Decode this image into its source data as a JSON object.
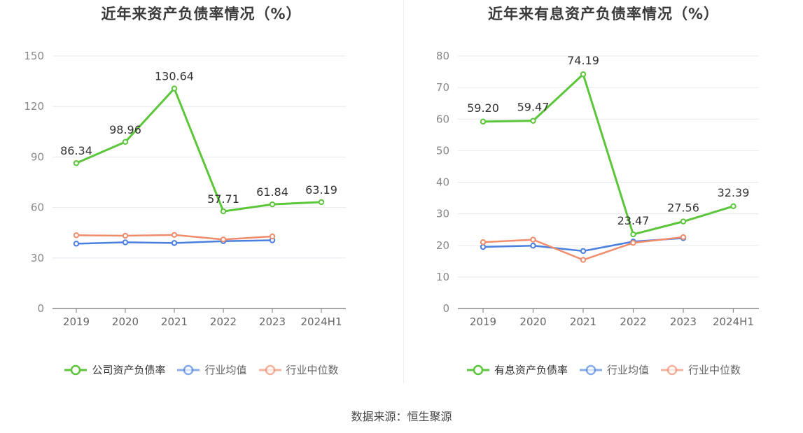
{
  "source_text": "数据来源：恒生聚源",
  "chart_data": [
    {
      "type": "line",
      "title": "近年来资产负债率情况（%）",
      "categories": [
        "2019",
        "2020",
        "2021",
        "2022",
        "2023",
        "2024H1"
      ],
      "ylim": [
        0,
        150
      ],
      "yticks": [
        0,
        30,
        60,
        90,
        120,
        150
      ],
      "grid": true,
      "legend_position": "bottom",
      "series": [
        {
          "name": "公司资产负债率",
          "color": "#5cc63a",
          "values": [
            86.34,
            98.96,
            130.64,
            57.71,
            61.84,
            63.19
          ],
          "labels": [
            "86.34",
            "98.96",
            "130.64",
            "57.71",
            "61.84",
            "63.19"
          ]
        },
        {
          "name": "行业均值",
          "color": "#4a7fe0",
          "values": [
            38.5,
            39.3,
            38.9,
            40.0,
            40.5,
            null
          ],
          "labels": []
        },
        {
          "name": "行业中位数",
          "color": "#f08c6c",
          "values": [
            43.5,
            43.2,
            43.7,
            41.0,
            42.8,
            null
          ],
          "labels": []
        }
      ]
    },
    {
      "type": "line",
      "title": "近年来有息资产负债率情况（%）",
      "categories": [
        "2019",
        "2020",
        "2021",
        "2022",
        "2023",
        "2024H1"
      ],
      "ylim": [
        0,
        80
      ],
      "yticks": [
        0,
        10,
        20,
        30,
        40,
        50,
        60,
        70,
        80
      ],
      "grid": true,
      "legend_position": "bottom",
      "series": [
        {
          "name": "有息资产负债率",
          "color": "#5cc63a",
          "values": [
            59.2,
            59.47,
            74.19,
            23.47,
            27.56,
            32.39
          ],
          "labels": [
            "59.20",
            "59.47",
            "74.19",
            "23.47",
            "27.56",
            "32.39"
          ]
        },
        {
          "name": "行业均值",
          "color": "#4a7fe0",
          "values": [
            19.5,
            19.9,
            18.2,
            21.2,
            22.3,
            null
          ],
          "labels": []
        },
        {
          "name": "行业中位数",
          "color": "#f08c6c",
          "values": [
            21.0,
            21.8,
            15.4,
            20.8,
            22.6,
            null
          ],
          "labels": []
        }
      ]
    }
  ]
}
